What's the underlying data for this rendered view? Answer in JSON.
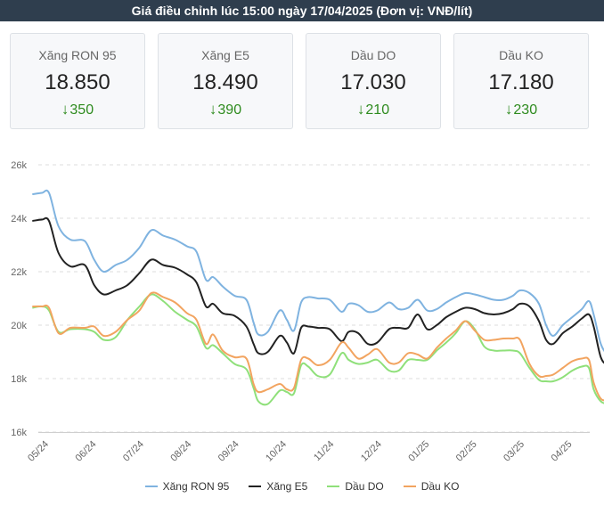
{
  "header": {
    "title": "Giá điều chỉnh lúc 15:00 ngày 17/04/2025 (Đơn vị: VNĐ/lít)"
  },
  "cards": [
    {
      "name": "Xăng RON 95",
      "price": "18.850",
      "change": "350",
      "direction": "down"
    },
    {
      "name": "Xăng E5",
      "price": "18.490",
      "change": "390",
      "direction": "down"
    },
    {
      "name": "Dầu DO",
      "price": "17.030",
      "change": "210",
      "direction": "down"
    },
    {
      "name": "Dầu KO",
      "price": "17.180",
      "change": "230",
      "direction": "down"
    }
  ],
  "icons": {
    "change_arrow": "arrow-down-icon"
  },
  "colors": {
    "change": "#2e8b1e",
    "header_bg": "#2f3e4e"
  },
  "chart_data": {
    "type": "line",
    "title": "",
    "xlabel": "",
    "ylabel": "",
    "ylim": [
      16000,
      26000
    ],
    "yticks": [
      16000,
      18000,
      20000,
      22000,
      24000,
      26000
    ],
    "ytick_labels": [
      "16k",
      "18k",
      "20k",
      "22k",
      "24k",
      "26k"
    ],
    "x_ticks": [
      "05/24",
      "06/24",
      "07/24",
      "08/24",
      "09/24",
      "10/24",
      "11/24",
      "12/24",
      "01/25",
      "02/25",
      "03/25",
      "04/25"
    ],
    "x_range": [
      0,
      12
    ],
    "grid": "horizontal-dashed",
    "legend_position": "bottom",
    "series": [
      {
        "name": "Xăng RON 95",
        "color": "#7fb3e0",
        "points": [
          [
            -0.2,
            24900
          ],
          [
            0.0,
            24950
          ],
          [
            0.15,
            24950
          ],
          [
            0.35,
            23700
          ],
          [
            0.6,
            23200
          ],
          [
            0.9,
            23150
          ],
          [
            1.1,
            22450
          ],
          [
            1.3,
            22000
          ],
          [
            1.55,
            22250
          ],
          [
            1.8,
            22450
          ],
          [
            2.05,
            22900
          ],
          [
            2.3,
            23550
          ],
          [
            2.55,
            23350
          ],
          [
            2.8,
            23200
          ],
          [
            3.05,
            22950
          ],
          [
            3.25,
            22750
          ],
          [
            3.45,
            21700
          ],
          [
            3.6,
            21800
          ],
          [
            3.8,
            21450
          ],
          [
            4.05,
            21100
          ],
          [
            4.3,
            20950
          ],
          [
            4.45,
            20100
          ],
          [
            4.55,
            19650
          ],
          [
            4.75,
            19750
          ],
          [
            5.0,
            20550
          ],
          [
            5.15,
            20200
          ],
          [
            5.3,
            19800
          ],
          [
            5.45,
            20850
          ],
          [
            5.6,
            21050
          ],
          [
            5.8,
            21000
          ],
          [
            6.05,
            20950
          ],
          [
            6.3,
            20500
          ],
          [
            6.45,
            20800
          ],
          [
            6.65,
            20750
          ],
          [
            6.85,
            20500
          ],
          [
            7.05,
            20550
          ],
          [
            7.3,
            20850
          ],
          [
            7.5,
            20600
          ],
          [
            7.7,
            20650
          ],
          [
            7.9,
            20950
          ],
          [
            8.1,
            20550
          ],
          [
            8.3,
            20600
          ],
          [
            8.5,
            20850
          ],
          [
            8.7,
            21050
          ],
          [
            8.9,
            21200
          ],
          [
            9.1,
            21150
          ],
          [
            9.3,
            21050
          ],
          [
            9.5,
            20950
          ],
          [
            9.7,
            20950
          ],
          [
            9.9,
            21100
          ],
          [
            10.05,
            21300
          ],
          [
            10.25,
            21200
          ],
          [
            10.45,
            20800
          ],
          [
            10.6,
            20000
          ],
          [
            10.75,
            19600
          ],
          [
            10.95,
            20000
          ],
          [
            11.15,
            20300
          ],
          [
            11.35,
            20600
          ],
          [
            11.5,
            20900
          ],
          [
            11.6,
            20400
          ],
          [
            11.75,
            19300
          ],
          [
            11.9,
            18900
          ],
          [
            12.05,
            18850
          ]
        ]
      },
      {
        "name": "Xăng E5",
        "color": "#222222",
        "points": [
          [
            -0.2,
            23900
          ],
          [
            0.0,
            23950
          ],
          [
            0.15,
            23900
          ],
          [
            0.35,
            22700
          ],
          [
            0.6,
            22200
          ],
          [
            0.9,
            22250
          ],
          [
            1.1,
            21500
          ],
          [
            1.3,
            21150
          ],
          [
            1.55,
            21300
          ],
          [
            1.8,
            21500
          ],
          [
            2.05,
            21950
          ],
          [
            2.3,
            22450
          ],
          [
            2.55,
            22250
          ],
          [
            2.8,
            22150
          ],
          [
            3.05,
            21900
          ],
          [
            3.25,
            21600
          ],
          [
            3.45,
            20700
          ],
          [
            3.6,
            20800
          ],
          [
            3.8,
            20450
          ],
          [
            4.05,
            20350
          ],
          [
            4.3,
            19950
          ],
          [
            4.45,
            19300
          ],
          [
            4.55,
            18950
          ],
          [
            4.75,
            19000
          ],
          [
            5.0,
            19600
          ],
          [
            5.15,
            19350
          ],
          [
            5.3,
            18950
          ],
          [
            5.45,
            19900
          ],
          [
            5.6,
            19950
          ],
          [
            5.8,
            19900
          ],
          [
            6.05,
            19850
          ],
          [
            6.3,
            19400
          ],
          [
            6.45,
            19750
          ],
          [
            6.65,
            19700
          ],
          [
            6.85,
            19300
          ],
          [
            7.05,
            19350
          ],
          [
            7.3,
            19850
          ],
          [
            7.5,
            19900
          ],
          [
            7.7,
            19900
          ],
          [
            7.9,
            20400
          ],
          [
            8.1,
            19850
          ],
          [
            8.3,
            20000
          ],
          [
            8.5,
            20300
          ],
          [
            8.7,
            20500
          ],
          [
            8.9,
            20650
          ],
          [
            9.1,
            20600
          ],
          [
            9.3,
            20450
          ],
          [
            9.5,
            20400
          ],
          [
            9.7,
            20450
          ],
          [
            9.9,
            20600
          ],
          [
            10.05,
            20800
          ],
          [
            10.25,
            20700
          ],
          [
            10.45,
            20150
          ],
          [
            10.6,
            19450
          ],
          [
            10.75,
            19300
          ],
          [
            10.95,
            19700
          ],
          [
            11.15,
            19950
          ],
          [
            11.35,
            20250
          ],
          [
            11.5,
            20400
          ],
          [
            11.6,
            19950
          ],
          [
            11.75,
            18800
          ],
          [
            11.9,
            18500
          ],
          [
            12.05,
            18490
          ]
        ]
      },
      {
        "name": "Dầu DO",
        "color": "#8fe07a",
        "points": [
          [
            -0.2,
            20650
          ],
          [
            0.0,
            20700
          ],
          [
            0.15,
            20550
          ],
          [
            0.35,
            19750
          ],
          [
            0.6,
            19850
          ],
          [
            0.9,
            19850
          ],
          [
            1.1,
            19750
          ],
          [
            1.3,
            19450
          ],
          [
            1.55,
            19550
          ],
          [
            1.8,
            20200
          ],
          [
            2.05,
            20700
          ],
          [
            2.3,
            21150
          ],
          [
            2.55,
            20900
          ],
          [
            2.8,
            20500
          ],
          [
            3.05,
            20200
          ],
          [
            3.25,
            19950
          ],
          [
            3.45,
            19150
          ],
          [
            3.6,
            19250
          ],
          [
            3.8,
            18950
          ],
          [
            4.05,
            18550
          ],
          [
            4.3,
            18350
          ],
          [
            4.45,
            17650
          ],
          [
            4.55,
            17150
          ],
          [
            4.75,
            17050
          ],
          [
            5.0,
            17550
          ],
          [
            5.15,
            17500
          ],
          [
            5.3,
            17450
          ],
          [
            5.45,
            18500
          ],
          [
            5.6,
            18450
          ],
          [
            5.8,
            18100
          ],
          [
            6.05,
            18150
          ],
          [
            6.3,
            18950
          ],
          [
            6.45,
            18700
          ],
          [
            6.65,
            18550
          ],
          [
            6.85,
            18600
          ],
          [
            7.05,
            18700
          ],
          [
            7.3,
            18300
          ],
          [
            7.5,
            18300
          ],
          [
            7.7,
            18700
          ],
          [
            7.9,
            18700
          ],
          [
            8.1,
            18700
          ],
          [
            8.3,
            19050
          ],
          [
            8.5,
            19350
          ],
          [
            8.7,
            19700
          ],
          [
            8.9,
            20150
          ],
          [
            9.1,
            19850
          ],
          [
            9.3,
            19200
          ],
          [
            9.5,
            19050
          ],
          [
            9.7,
            19050
          ],
          [
            9.9,
            19050
          ],
          [
            10.05,
            18950
          ],
          [
            10.25,
            18400
          ],
          [
            10.45,
            17950
          ],
          [
            10.6,
            17900
          ],
          [
            10.75,
            17900
          ],
          [
            10.95,
            18050
          ],
          [
            11.15,
            18300
          ],
          [
            11.35,
            18450
          ],
          [
            11.5,
            18400
          ],
          [
            11.6,
            17600
          ],
          [
            11.75,
            17150
          ],
          [
            11.9,
            17050
          ],
          [
            12.05,
            17030
          ]
        ]
      },
      {
        "name": "Dầu KO",
        "color": "#f2a460",
        "points": [
          [
            -0.2,
            20700
          ],
          [
            0.0,
            20700
          ],
          [
            0.15,
            20650
          ],
          [
            0.35,
            19700
          ],
          [
            0.6,
            19900
          ],
          [
            0.9,
            19900
          ],
          [
            1.1,
            19950
          ],
          [
            1.3,
            19600
          ],
          [
            1.55,
            19750
          ],
          [
            1.8,
            20200
          ],
          [
            2.05,
            20550
          ],
          [
            2.3,
            21200
          ],
          [
            2.55,
            21050
          ],
          [
            2.8,
            20850
          ],
          [
            3.05,
            20450
          ],
          [
            3.25,
            20200
          ],
          [
            3.45,
            19300
          ],
          [
            3.6,
            19650
          ],
          [
            3.8,
            19050
          ],
          [
            4.05,
            18800
          ],
          [
            4.3,
            18750
          ],
          [
            4.45,
            17800
          ],
          [
            4.55,
            17500
          ],
          [
            4.75,
            17600
          ],
          [
            5.0,
            17800
          ],
          [
            5.15,
            17600
          ],
          [
            5.3,
            17650
          ],
          [
            5.45,
            18700
          ],
          [
            5.6,
            18750
          ],
          [
            5.8,
            18500
          ],
          [
            6.05,
            18700
          ],
          [
            6.3,
            19350
          ],
          [
            6.45,
            19150
          ],
          [
            6.65,
            18750
          ],
          [
            6.85,
            18900
          ],
          [
            7.05,
            19100
          ],
          [
            7.3,
            18600
          ],
          [
            7.5,
            18600
          ],
          [
            7.7,
            18950
          ],
          [
            7.9,
            18900
          ],
          [
            8.1,
            18750
          ],
          [
            8.3,
            19150
          ],
          [
            8.5,
            19500
          ],
          [
            8.7,
            19800
          ],
          [
            8.9,
            20150
          ],
          [
            9.1,
            19800
          ],
          [
            9.3,
            19450
          ],
          [
            9.5,
            19450
          ],
          [
            9.7,
            19500
          ],
          [
            9.9,
            19500
          ],
          [
            10.05,
            19450
          ],
          [
            10.25,
            18550
          ],
          [
            10.45,
            18100
          ],
          [
            10.6,
            18100
          ],
          [
            10.75,
            18150
          ],
          [
            10.95,
            18400
          ],
          [
            11.15,
            18650
          ],
          [
            11.35,
            18750
          ],
          [
            11.5,
            18700
          ],
          [
            11.6,
            17850
          ],
          [
            11.75,
            17250
          ],
          [
            11.9,
            17200
          ],
          [
            12.05,
            17180
          ]
        ]
      }
    ]
  }
}
